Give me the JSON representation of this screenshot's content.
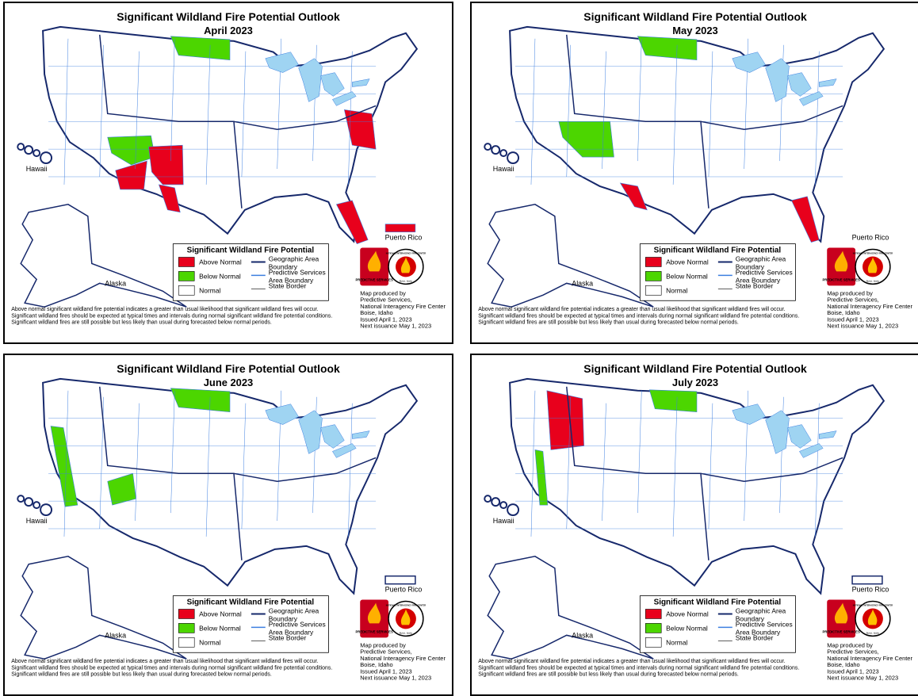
{
  "panels": [
    {
      "title": "Significant Wildland Fire Potential Outlook",
      "subtitle": "April 2023",
      "labels": {
        "hawaii": "Hawaii",
        "alaska": "Alaska",
        "puerto_rico": "Puerto Rico"
      },
      "legend": {
        "title": "Significant Wildland Fire Potential",
        "items": [
          "Above Normal",
          "Below Normal",
          "Normal"
        ],
        "lines": [
          "Geographic Area Boundary",
          "Predictive Services Area Boundary",
          "State Border"
        ]
      },
      "logo": {
        "predictive": "PREDICTIVE SERVICES",
        "nifc": "NATIONAL INTERAGENCY FIRE CENTER",
        "place": "Boise, Idaho"
      },
      "credits": [
        "Map produced by",
        "Predictive Services,",
        "National Interagency Fire Center",
        "Boise, Idaho",
        "Issued April 1, 2023",
        "Next issuance May 1, 2023"
      ],
      "notes": [
        "Above normal significant wildland fire potential indicates a greater than usual likelihood that significant wildland fires will occur.",
        "Significant wildland fires should be expected at typical times and intervals during normal significant wildland fire potential conditions.",
        "Significant wildland fires are still possible but less likely than usual during forecasted below normal periods."
      ]
    },
    {
      "title": "Significant Wildland Fire Potential Outlook",
      "subtitle": "May 2023",
      "labels": {
        "hawaii": "Hawaii",
        "alaska": "Alaska",
        "puerto_rico": "Puerto Rico"
      },
      "legend": {
        "title": "Significant Wildland Fire Potential",
        "items": [
          "Above Normal",
          "Below Normal",
          "Normal"
        ],
        "lines": [
          "Geographic Area Boundary",
          "Predictive Services Area Boundary",
          "State Border"
        ]
      },
      "logo": {
        "predictive": "PREDICTIVE SERVICES",
        "nifc": "NATIONAL INTERAGENCY FIRE CENTER",
        "place": "Boise, Idaho"
      },
      "credits": [
        "Map produced by",
        "Predictive Services,",
        "National Interagency Fire Center",
        "Boise, Idaho",
        "Issued April 1, 2023",
        "Next issuance May 1, 2023"
      ],
      "notes": [
        "Above normal significant wildland fire potential indicates a greater than usual likelihood that significant wildland fires will occur.",
        "Significant wildland fires should be expected at typical times and intervals during normal significant wildland fire potential conditions.",
        "Significant wildland fires are still possible but less likely than usual during forecasted below normal periods."
      ]
    },
    {
      "title": "Significant Wildland Fire Potential Outlook",
      "subtitle": "June 2023",
      "labels": {
        "hawaii": "Hawaii",
        "alaska": "Alaska",
        "puerto_rico": "Puerto Rico"
      },
      "legend": {
        "title": "Significant Wildland Fire Potential",
        "items": [
          "Above Normal",
          "Below Normal",
          "Normal"
        ],
        "lines": [
          "Geographic Area Boundary",
          "Predictive Services Area Boundary",
          "State Border"
        ]
      },
      "logo": {
        "predictive": "PREDICTIVE SERVICES",
        "nifc": "NATIONAL INTERAGENCY FIRE CENTER",
        "place": "Boise, Idaho"
      },
      "credits": [
        "Map produced by",
        "Predictive Services,",
        "National Interagency Fire Center",
        "Boise, Idaho",
        "Issued April 1, 2023",
        "Next issuance May 1, 2023"
      ],
      "notes": [
        "Above normal significant wildland fire potential indicates a greater than usual likelihood that significant wildland fires will occur.",
        "Significant wildland fires should be expected at typical times and intervals during normal significant wildland fire potential conditions.",
        "Significant wildland fires are still possible but less likely than usual during forecasted below normal periods."
      ]
    },
    {
      "title": "Significant Wildland Fire Potential Outlook",
      "subtitle": "July 2023",
      "labels": {
        "hawaii": "Hawaii",
        "alaska": "Alaska",
        "puerto_rico": "Puerto Rico"
      },
      "legend": {
        "title": "Significant Wildland Fire Potential",
        "items": [
          "Above Normal",
          "Below Normal",
          "Normal"
        ],
        "lines": [
          "Geographic Area Boundary",
          "Predictive Services Area Boundary",
          "State Border"
        ]
      },
      "logo": {
        "predictive": "PREDICTIVE SERVICES",
        "nifc": "NATIONAL INTERAGENCY FIRE CENTER",
        "place": "Boise, Idaho"
      },
      "credits": [
        "Map produced by",
        "Predictive Services,",
        "National Interagency Fire Center",
        "Boise, Idaho",
        "Issued April 1, 2023",
        "Next issuance May 1, 2023"
      ],
      "notes": [
        "Above normal significant wildland fire potential indicates a greater than usual likelihood that significant wildland fires will occur.",
        "Significant wildland fires should be expected at typical times and intervals during normal significant wildland fire potential conditions.",
        "Significant wildland fires are still possible but less likely than usual during forecasted below normal periods."
      ]
    }
  ]
}
